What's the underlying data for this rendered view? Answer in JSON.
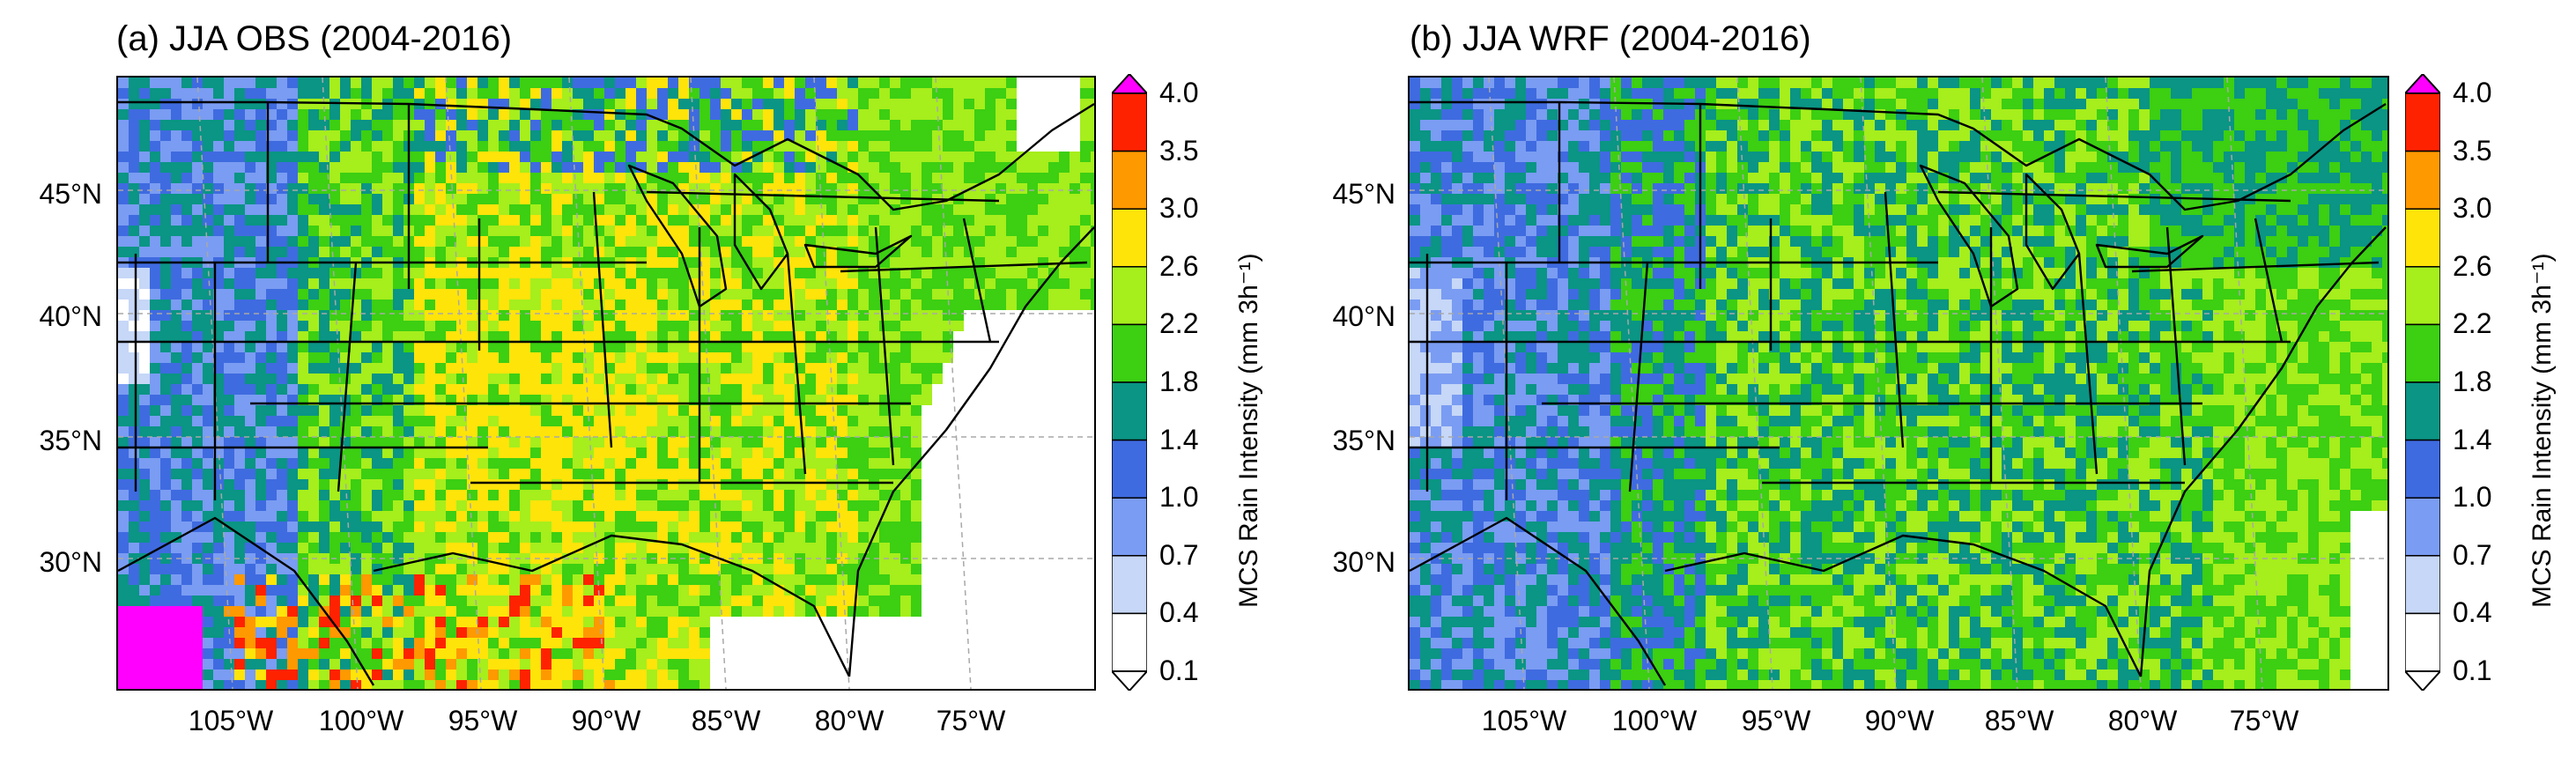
{
  "panels": [
    {
      "title": "(a) JJA OBS (2004-2016)",
      "lat_ticks": [
        "45°N",
        "40°N",
        "35°N",
        "30°N"
      ],
      "lon_ticks": [
        "105°W",
        "100°W",
        "95°W",
        "90°W",
        "85°W",
        "80°W",
        "75°W"
      ],
      "colorbar": {
        "label": "MCS Rain Intensity (mm 3h⁻¹)",
        "ticks": [
          "4.0",
          "3.5",
          "3.0",
          "2.6",
          "2.2",
          "1.8",
          "1.4",
          "1.0",
          "0.7",
          "0.4",
          "0.1"
        ]
      }
    },
    {
      "title": "(b) JJA WRF (2004-2016)",
      "lat_ticks": [
        "45°N",
        "40°N",
        "35°N",
        "30°N"
      ],
      "lon_ticks": [
        "105°W",
        "100°W",
        "95°W",
        "90°W",
        "85°W",
        "80°W",
        "75°W"
      ],
      "colorbar": {
        "label": "MCS Rain Intensity (mm 3h⁻¹)",
        "ticks": [
          "4.0",
          "3.5",
          "3.0",
          "2.6",
          "2.2",
          "1.8",
          "1.4",
          "1.0",
          "0.7",
          "0.4",
          "0.1"
        ]
      }
    }
  ],
  "colors": {
    "palette": [
      "#ffffff",
      "#c6d7f7",
      "#7a9cf2",
      "#3f6be0",
      "#0a9584",
      "#3ccf12",
      "#a6ee1c",
      "#ffe40a",
      "#ff9900",
      "#ff2200",
      "#ff00ff"
    ],
    "grid": "#a8a8a8",
    "border": "#000000"
  }
}
